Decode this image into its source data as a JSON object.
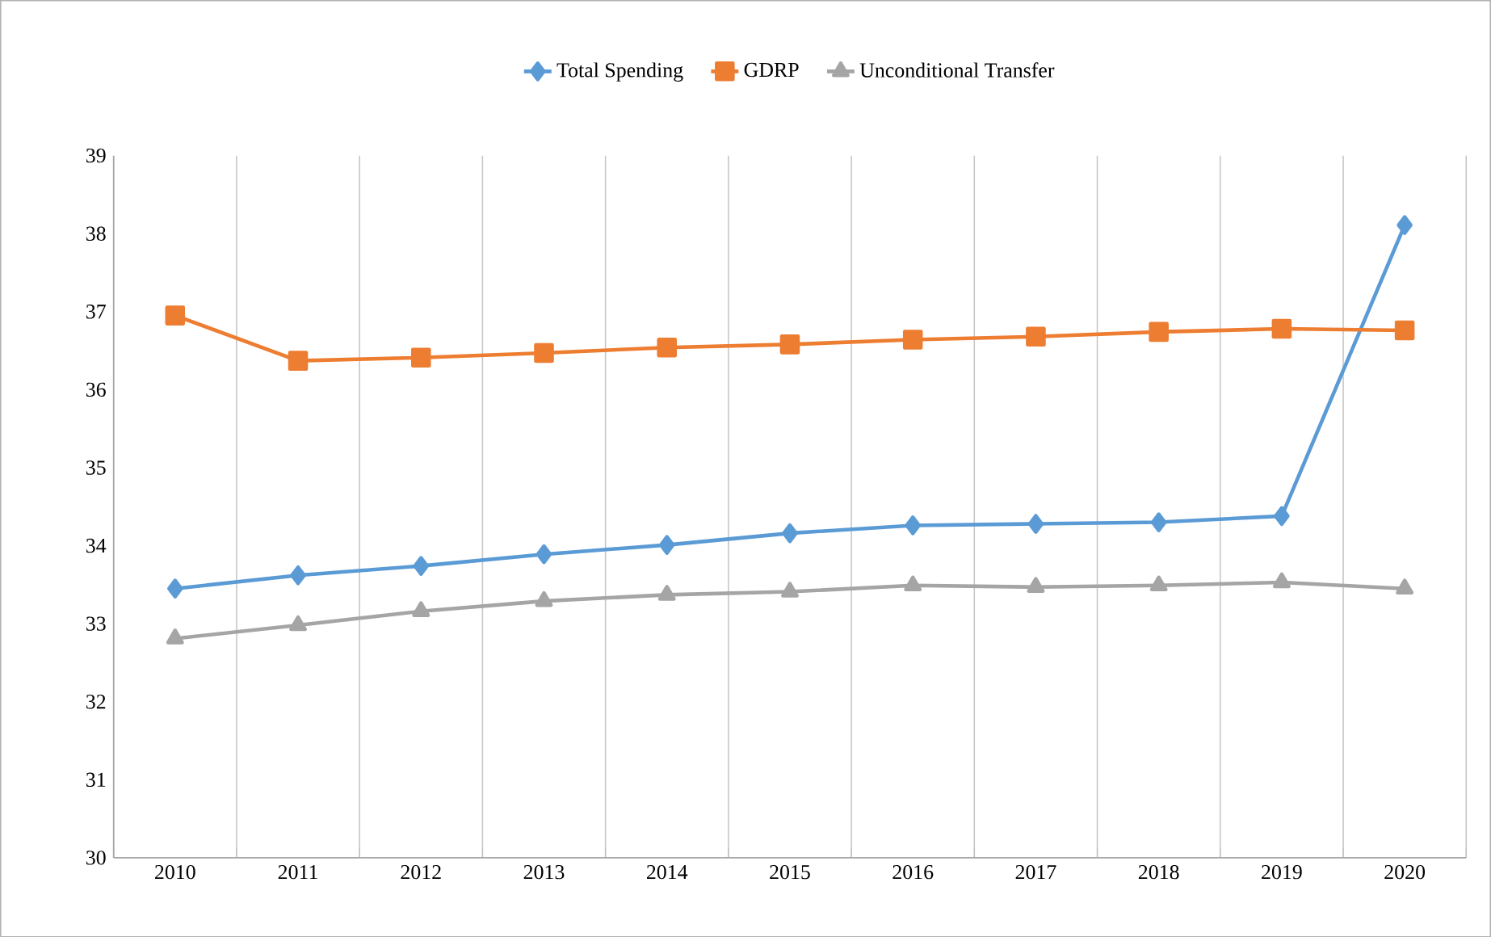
{
  "chart_data": {
    "type": "line",
    "categories": [
      "2010",
      "2011",
      "2012",
      "2013",
      "2014",
      "2015",
      "2016",
      "2017",
      "2018",
      "2019",
      "2020"
    ],
    "series": [
      {
        "name": "Total Spending",
        "color": "#5b9bd5",
        "marker": "diamond",
        "values": [
          33.45,
          33.62,
          33.74,
          33.89,
          34.01,
          34.16,
          34.26,
          34.28,
          34.3,
          34.38,
          38.11
        ]
      },
      {
        "name": "GDRP",
        "color": "#ed7d31",
        "marker": "square",
        "values": [
          36.95,
          36.37,
          36.41,
          36.47,
          36.54,
          36.58,
          36.64,
          36.68,
          36.74,
          36.78,
          36.76
        ]
      },
      {
        "name": "Unconditional Transfer",
        "color": "#a5a5a5",
        "marker": "triangle",
        "values": [
          32.81,
          32.98,
          33.16,
          33.29,
          33.37,
          33.41,
          33.49,
          33.47,
          33.49,
          33.53,
          33.45
        ]
      }
    ],
    "ylim": [
      30,
      39
    ],
    "yticks": [
      30,
      31,
      32,
      33,
      34,
      35,
      36,
      37,
      38,
      39
    ],
    "grid": "x",
    "legend": "top",
    "line_style": "solid"
  }
}
